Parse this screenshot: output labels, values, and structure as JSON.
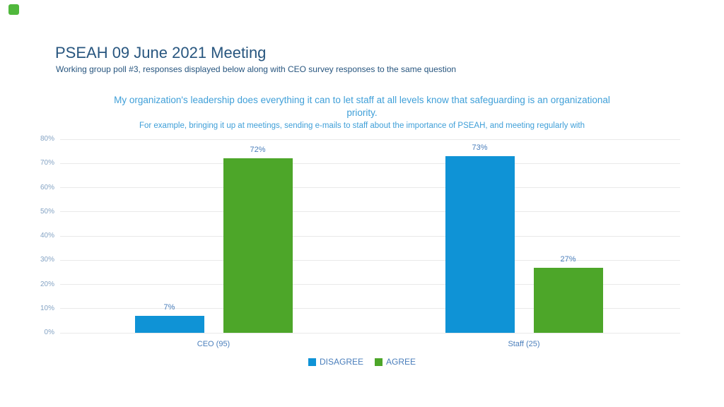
{
  "slide": {
    "background": "#ffffff",
    "corner_logo_color": "#50b83c"
  },
  "header": {
    "title": "PSEAH 09 June 2021 Meeting",
    "subtitle": "Working group poll #3, responses displayed below along with CEO survey responses to the same question",
    "title_color": "#28567f"
  },
  "chart_data": {
    "type": "bar",
    "title": "My organization's leadership does everything it can to let staff at all levels know that safeguarding is an organizational priority.",
    "title_lines": [
      "My organization's leadership does everything it can to let staff at all levels know that safeguarding is an organizational",
      "priority."
    ],
    "subtitle": "For example, bringing it up at meetings, sending e-mails to staff about the importance of PSEAH, and meeting regularly with",
    "title_color": "#3f9fd8",
    "categories": [
      "CEO (95)",
      "Staff (25)"
    ],
    "series": [
      {
        "name": "DISAGREE",
        "color": "#0f93d6",
        "values": [
          7,
          73
        ]
      },
      {
        "name": "AGREE",
        "color": "#4da629",
        "values": [
          72,
          27
        ]
      }
    ],
    "value_label_suffix": "%",
    "ylim": [
      0,
      80
    ],
    "yticks": [
      "0%",
      "10%",
      "20%",
      "30%",
      "40%",
      "50%",
      "60%",
      "70%",
      "80%"
    ],
    "grid": "horizontal",
    "gridline_color": "#e9e9e9",
    "label_color": "#4a7ebb",
    "ytick_color": "#84a3c4",
    "legend_position": "bottom"
  }
}
